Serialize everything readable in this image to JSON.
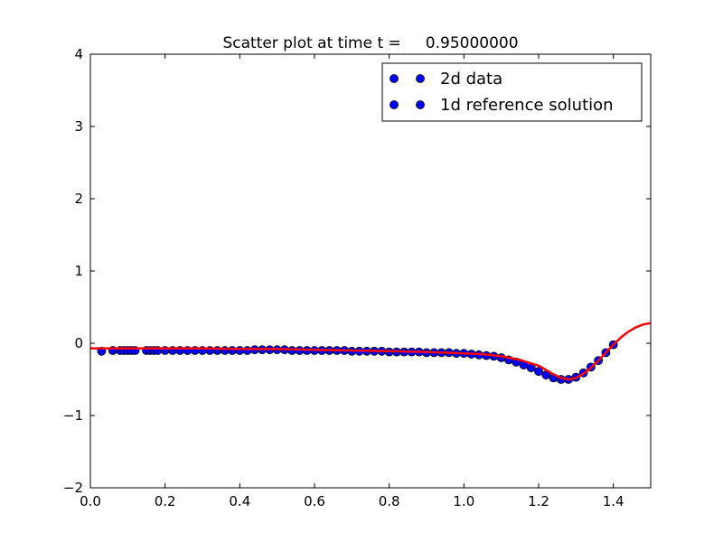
{
  "chart_data": {
    "type": "scatter",
    "title": "Scatter plot at time t =     0.95000000",
    "xlabel": "",
    "ylabel": "",
    "xlim": [
      0.0,
      1.5
    ],
    "ylim": [
      -2,
      4
    ],
    "xticks": [
      0.0,
      0.2,
      0.4,
      0.6,
      0.8,
      1.0,
      1.2,
      1.4
    ],
    "xtick_labels": [
      "0.0",
      "0.2",
      "0.4",
      "0.6",
      "0.8",
      "1.0",
      "1.2",
      "1.4"
    ],
    "yticks": [
      -2,
      -1,
      0,
      1,
      2,
      3,
      4
    ],
    "ytick_labels": [
      "−2",
      "−1",
      "0",
      "1",
      "2",
      "3",
      "4"
    ],
    "grid": false,
    "legend_position": "top-right",
    "series": [
      {
        "name": "2d data",
        "kind": "scatter",
        "color": "#0000ff",
        "edge_color": "#000000",
        "x": [
          0.03,
          0.06,
          0.08,
          0.09,
          0.1,
          0.11,
          0.12,
          0.15,
          0.16,
          0.17,
          0.18,
          0.2,
          0.22,
          0.24,
          0.26,
          0.28,
          0.3,
          0.32,
          0.34,
          0.36,
          0.38,
          0.4,
          0.42,
          0.44,
          0.46,
          0.48,
          0.5,
          0.52,
          0.54,
          0.56,
          0.58,
          0.6,
          0.62,
          0.64,
          0.66,
          0.68,
          0.7,
          0.72,
          0.74,
          0.76,
          0.78,
          0.8,
          0.82,
          0.84,
          0.86,
          0.88,
          0.9,
          0.92,
          0.94,
          0.96,
          0.98,
          1.0,
          1.02,
          1.04,
          1.06,
          1.08,
          1.1,
          1.12,
          1.14,
          1.16,
          1.18,
          1.2,
          1.22,
          1.24,
          1.26,
          1.28,
          1.3,
          1.32,
          1.34,
          1.36,
          1.38,
          1.4
        ],
        "y": [
          -0.11,
          -0.1,
          -0.1,
          -0.1,
          -0.1,
          -0.1,
          -0.1,
          -0.1,
          -0.1,
          -0.1,
          -0.1,
          -0.1,
          -0.1,
          -0.1,
          -0.1,
          -0.1,
          -0.1,
          -0.1,
          -0.1,
          -0.1,
          -0.1,
          -0.1,
          -0.1,
          -0.09,
          -0.09,
          -0.09,
          -0.09,
          -0.09,
          -0.1,
          -0.1,
          -0.1,
          -0.1,
          -0.1,
          -0.1,
          -0.1,
          -0.1,
          -0.11,
          -0.11,
          -0.11,
          -0.11,
          -0.11,
          -0.12,
          -0.12,
          -0.12,
          -0.12,
          -0.12,
          -0.13,
          -0.13,
          -0.13,
          -0.13,
          -0.14,
          -0.14,
          -0.15,
          -0.16,
          -0.17,
          -0.18,
          -0.2,
          -0.23,
          -0.26,
          -0.3,
          -0.34,
          -0.39,
          -0.44,
          -0.48,
          -0.5,
          -0.5,
          -0.47,
          -0.41,
          -0.33,
          -0.24,
          -0.13,
          -0.02
        ]
      },
      {
        "name": "1d reference solution",
        "kind": "line",
        "color": "#ff0000",
        "x": [
          0.0,
          0.1,
          0.2,
          0.3,
          0.4,
          0.5,
          0.6,
          0.7,
          0.8,
          0.9,
          1.0,
          1.05,
          1.1,
          1.15,
          1.2,
          1.22,
          1.24,
          1.26,
          1.28,
          1.3,
          1.32,
          1.34,
          1.36,
          1.38,
          1.4,
          1.42,
          1.44,
          1.46,
          1.48,
          1.5
        ],
        "y": [
          -0.07,
          -0.07,
          -0.07,
          -0.07,
          -0.08,
          -0.08,
          -0.09,
          -0.1,
          -0.11,
          -0.12,
          -0.14,
          -0.15,
          -0.18,
          -0.23,
          -0.31,
          -0.37,
          -0.43,
          -0.48,
          -0.5,
          -0.48,
          -0.42,
          -0.34,
          -0.24,
          -0.13,
          -0.02,
          0.08,
          0.16,
          0.22,
          0.26,
          0.28
        ]
      }
    ]
  }
}
